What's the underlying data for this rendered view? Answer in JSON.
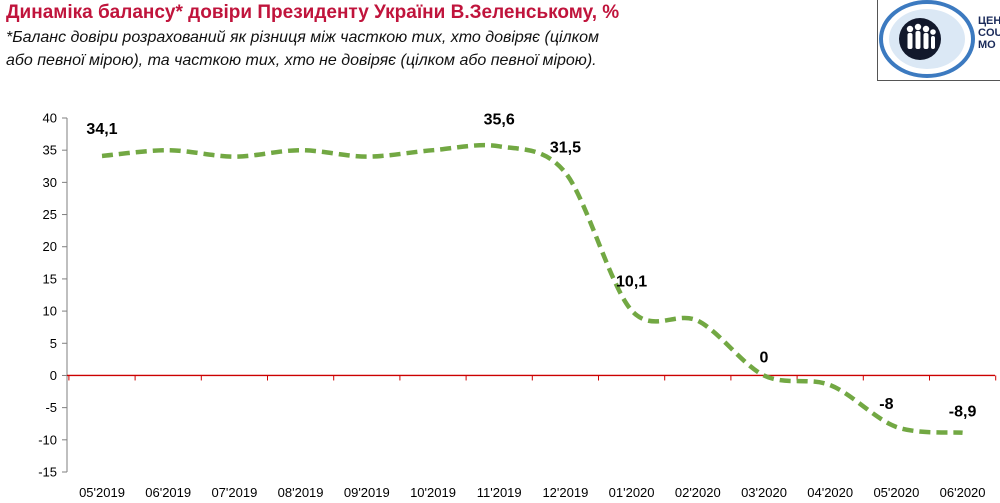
{
  "header": {
    "title": "Динаміка балансу* довіри Президенту України В.Зеленському, %",
    "subtitle_line1": "*Баланс довіри розрахований як різниця між часткою тих, хто довіряє (цілком",
    "subtitle_line2": "або певної мірою), та часткою тих, хто не довіряє (цілком або певної мірою)."
  },
  "logo": {
    "line1": "ЦЕН",
    "line2": "COU",
    "line3": "МО"
  },
  "colors": {
    "title": "#c0143c",
    "line": "#72a843",
    "zero_line": "#cc0000",
    "axis": "#7f7f7f"
  },
  "chart_data": {
    "type": "line",
    "categories": [
      "05'2019",
      "06'2019",
      "07'2019",
      "08'2019",
      "09'2019",
      "10'2019",
      "11'2019",
      "12'2019",
      "01'2020",
      "02'2020",
      "03'2020",
      "04'2020",
      "05'2020",
      "06'2020"
    ],
    "values": [
      34.1,
      35,
      34,
      35,
      34,
      35,
      35.6,
      31.5,
      10.1,
      8.5,
      0,
      -1.5,
      -8,
      -8.9
    ],
    "data_labels": [
      "34,1",
      "",
      "",
      "",
      "",
      "",
      "35,6",
      "31,5",
      "10,1",
      "",
      "0",
      "",
      "-8",
      "-8,9"
    ],
    "yticks": [
      40,
      35,
      30,
      25,
      20,
      15,
      10,
      5,
      0,
      -5,
      -10,
      -15
    ],
    "ytick_labels": [
      "40",
      "35",
      "30",
      "25",
      "20",
      "15",
      "10",
      "5",
      "0",
      "-5",
      "-10",
      "-15"
    ],
    "ylim": [
      -15,
      40
    ],
    "line_style": "dashed",
    "smooth": true,
    "grid": false,
    "title": "",
    "xlabel": "",
    "ylabel": ""
  }
}
